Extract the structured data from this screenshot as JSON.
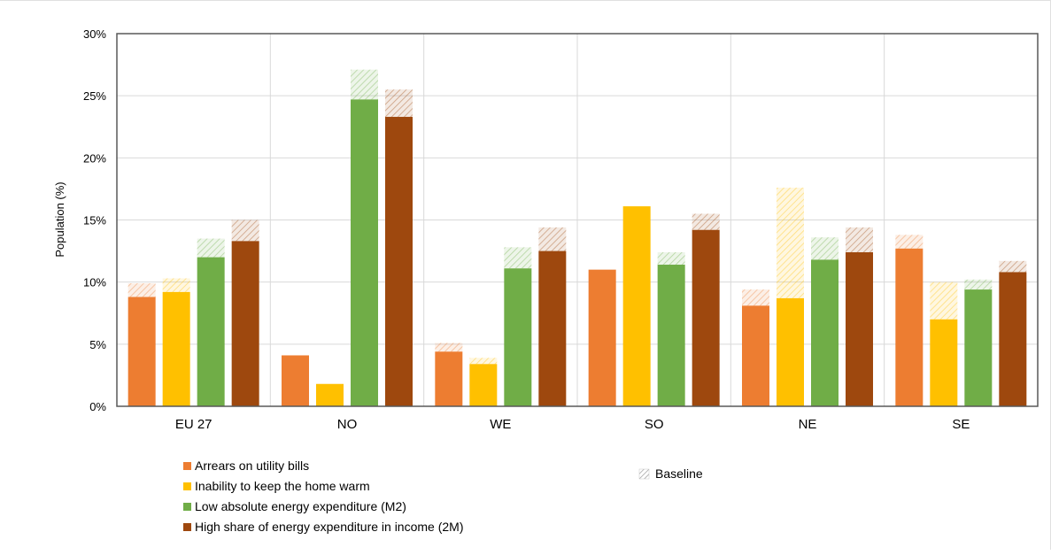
{
  "chart_data": {
    "type": "bar",
    "ylabel": "Population (%)",
    "ylim": [
      0,
      30
    ],
    "yticks": [
      0,
      5,
      10,
      15,
      20,
      25,
      30
    ],
    "ytick_labels": [
      "0%",
      "5%",
      "10%",
      "15%",
      "20%",
      "25%",
      "30%"
    ],
    "grid": true,
    "categories": [
      "EU 27",
      "NO",
      "WE",
      "SO",
      "NE",
      "SE"
    ],
    "series": [
      {
        "name": "Arrears on utility bills",
        "color": "#ed7d31",
        "values": [
          8.8,
          4.1,
          4.4,
          11.0,
          8.1,
          12.7
        ],
        "baseline": [
          9.9,
          4.1,
          5.1,
          11.0,
          9.4,
          13.8
        ]
      },
      {
        "name": "Inability to keep the home warm",
        "color": "#ffc000",
        "values": [
          9.2,
          1.8,
          3.4,
          16.1,
          8.7,
          7.0
        ],
        "baseline": [
          10.3,
          1.8,
          3.9,
          16.1,
          17.6,
          10.0
        ]
      },
      {
        "name": "Low absolute energy expenditure (M2)",
        "color": "#70ad47",
        "values": [
          12.0,
          24.7,
          11.1,
          11.4,
          11.8,
          9.4
        ],
        "baseline": [
          13.5,
          27.1,
          12.8,
          12.4,
          13.6,
          10.2
        ]
      },
      {
        "name": "High share of energy expenditure in income (2M)",
        "color": "#9e480e",
        "values": [
          13.3,
          23.3,
          12.5,
          14.2,
          12.4,
          10.8
        ],
        "baseline": [
          15.0,
          25.5,
          14.4,
          15.5,
          14.4,
          11.7
        ]
      }
    ],
    "baseline_label": "Baseline",
    "legend_position": "bottom"
  }
}
